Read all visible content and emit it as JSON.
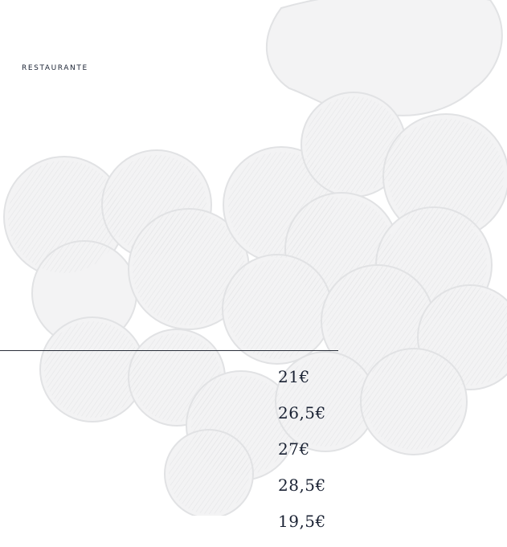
{
  "header": {
    "logo_glyph": ")",
    "logo_label": "RESTAURANTE"
  },
  "prices": [
    "21€",
    "26,5€",
    "27€",
    "28,5€",
    "19,5€"
  ],
  "colors": {
    "text": "#1a2233",
    "divider": "#2a2f3a",
    "watermark": "#e9e9ea"
  },
  "background": {
    "icon": "grape-bunch-engraving-icon"
  }
}
